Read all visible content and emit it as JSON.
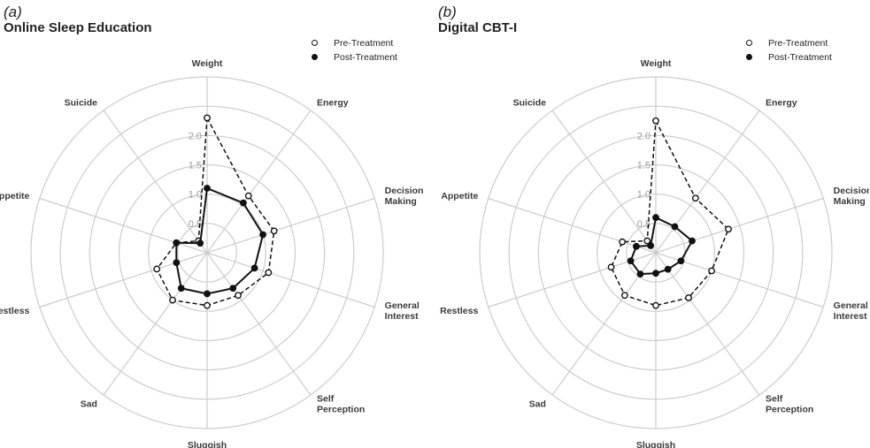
{
  "chart_data": [
    {
      "type": "radar",
      "panel_letter": "(a)",
      "title": "Online Sleep Education",
      "axes": [
        "Weight",
        "Energy",
        "Decision Making",
        "General Interest",
        "Self Perception",
        "Sluggish",
        "Sad",
        "Restless",
        "Appetite",
        "Suicide"
      ],
      "axis_label_lines": [
        [
          "Weight"
        ],
        [
          "Energy"
        ],
        [
          "Decision",
          "Making"
        ],
        [
          "General",
          "Interest"
        ],
        [
          "Self",
          "Perception"
        ],
        [
          "Sluggish"
        ],
        [
          "Sad"
        ],
        [
          "Restless"
        ],
        [
          "Appetite"
        ],
        [
          "Suicide"
        ]
      ],
      "ring_ticks": [
        "0.5",
        "1.0",
        "1.5",
        "2.0"
      ],
      "ring_values": [
        0.5,
        1.0,
        1.5,
        2.0,
        2.5,
        3.0
      ],
      "rmax": 3.0,
      "grid": true,
      "legend": {
        "position": "top-right",
        "entries": [
          {
            "label": "Pre-Treatment",
            "style": "open-circle-dashed"
          },
          {
            "label": "Post-Treatment",
            "style": "filled-circle-solid"
          }
        ]
      },
      "series": [
        {
          "name": "Pre-Treatment",
          "values": [
            2.3,
            1.2,
            1.2,
            1.1,
            0.9,
            0.9,
            1.0,
            0.9,
            0.55,
            0.25
          ]
        },
        {
          "name": "Post-Treatment",
          "values": [
            1.1,
            1.05,
            1.0,
            0.85,
            0.75,
            0.7,
            0.75,
            0.55,
            0.55,
            0.2
          ]
        }
      ]
    },
    {
      "type": "radar",
      "panel_letter": "(b)",
      "title": "Digital CBT-I",
      "axes": [
        "Weight",
        "Energy",
        "Decision Making",
        "General Interest",
        "Self Perception",
        "Sluggish",
        "Sad",
        "Restless",
        "Appetite",
        "Suicide"
      ],
      "axis_label_lines": [
        [
          "Weight"
        ],
        [
          "Energy"
        ],
        [
          "Decision",
          "Making"
        ],
        [
          "General",
          "Interest"
        ],
        [
          "Self",
          "Perception"
        ],
        [
          "Sluggish"
        ],
        [
          "Sad"
        ],
        [
          "Restless"
        ],
        [
          "Appetite"
        ],
        [
          "Suicide"
        ]
      ],
      "ring_ticks": [
        "0.5",
        "1.0",
        "1.5",
        "2.0"
      ],
      "ring_values": [
        0.5,
        1.0,
        1.5,
        2.0,
        2.5,
        3.0
      ],
      "rmax": 3.0,
      "grid": true,
      "legend": {
        "position": "top-right",
        "entries": [
          {
            "label": "Pre-Treatment",
            "style": "open-circle-dashed"
          },
          {
            "label": "Post-Treatment",
            "style": "filled-circle-solid"
          }
        ]
      },
      "series": [
        {
          "name": "Pre-Treatment",
          "values": [
            2.25,
            1.15,
            1.3,
            1.0,
            0.95,
            0.9,
            0.9,
            0.8,
            0.6,
            0.25
          ]
        },
        {
          "name": "Post-Treatment",
          "values": [
            0.6,
            0.55,
            0.65,
            0.45,
            0.35,
            0.35,
            0.45,
            0.45,
            0.35,
            0.15
          ]
        }
      ]
    }
  ],
  "colors": {
    "grid": "#cccccc",
    "series_line": "#111111",
    "ring_label": "#9a9a9a"
  }
}
